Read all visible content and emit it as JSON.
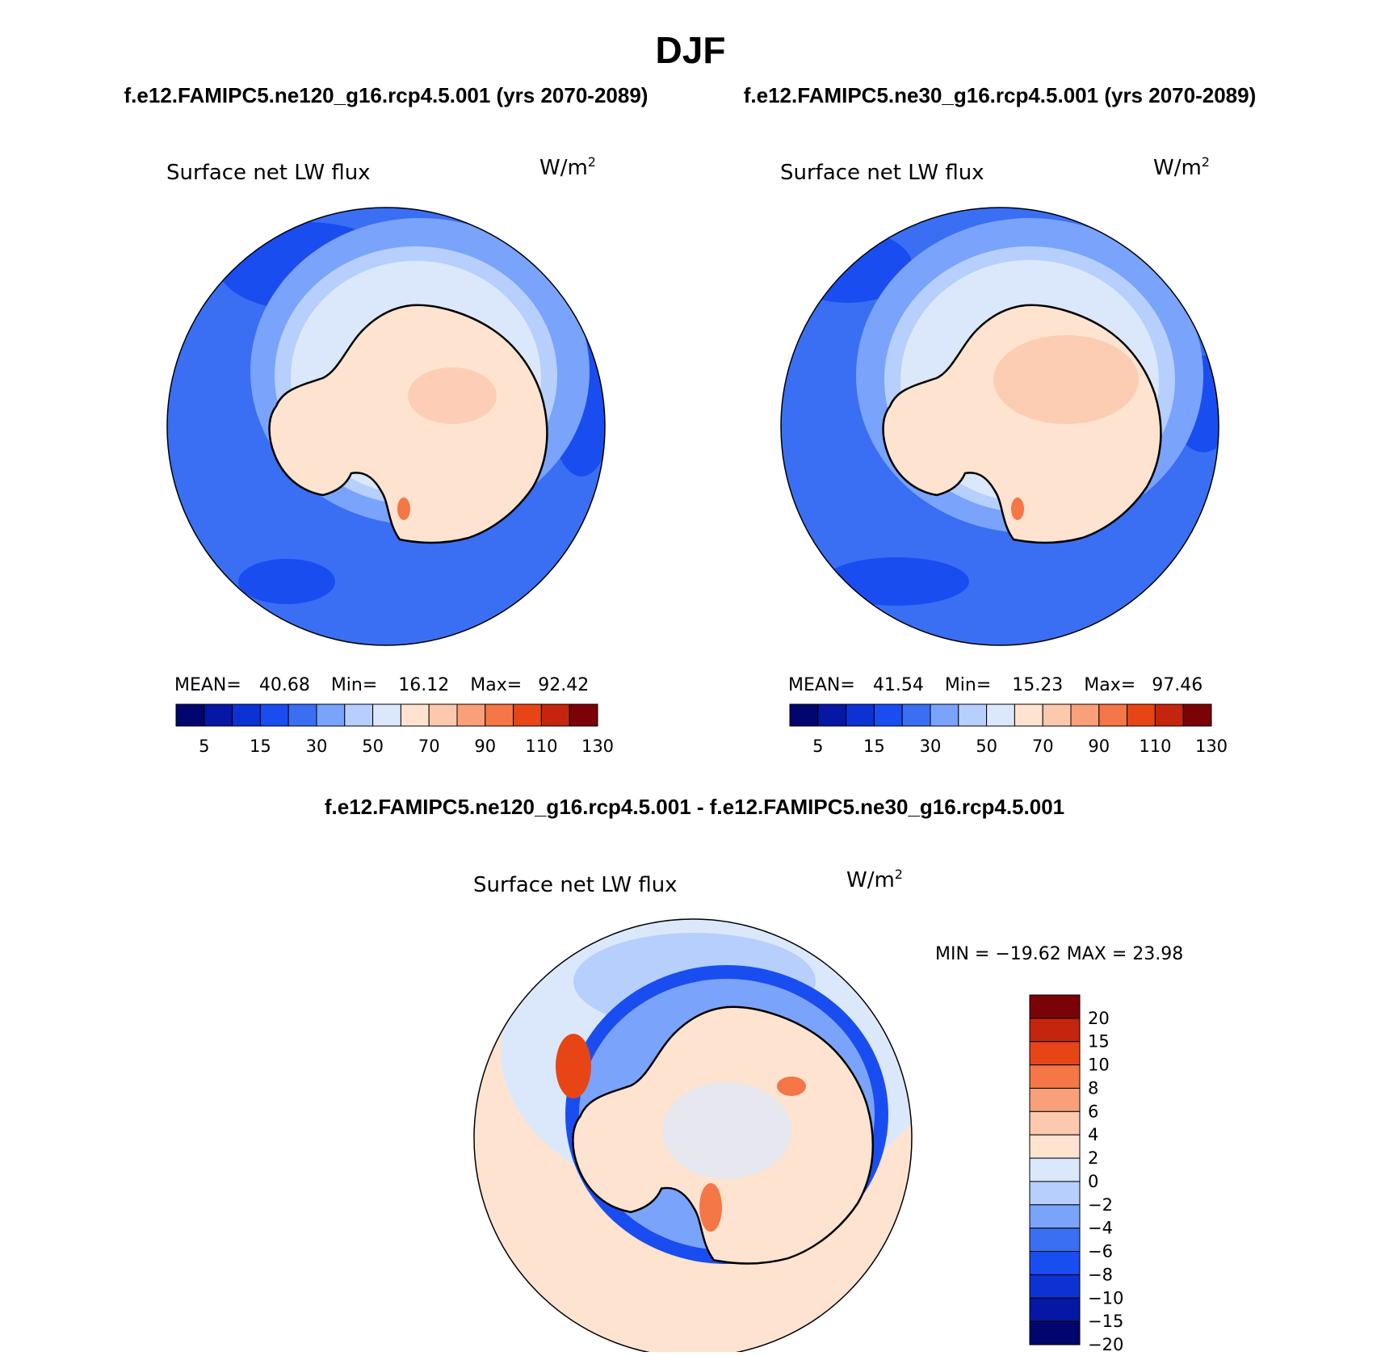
{
  "season": "DJF",
  "colors": {
    "abs": [
      "#00066e",
      "#0517a4",
      "#0d32d4",
      "#1a4df0",
      "#3a6ff4",
      "#7aa3fb",
      "#b6cffc",
      "#dbe8fc",
      "#fde3d0",
      "#fcc8ae",
      "#f9a07a",
      "#f57646",
      "#e84516",
      "#c5250d",
      "#7b0308"
    ],
    "diff": [
      "#00066e",
      "#0517a4",
      "#0d32d4",
      "#1a4df0",
      "#3a6ff4",
      "#7aa3fb",
      "#b6cffc",
      "#dbe8fc",
      "#fde3d0",
      "#fcc8ae",
      "#f9a07a",
      "#f57646",
      "#e84516",
      "#c5250d",
      "#7b0308"
    ],
    "continent": "#fde3d0",
    "coast": "#000000"
  },
  "panels": {
    "left": {
      "case_title": "f.e12.FAMIPC5.ne120_g16.rcp4.5.001 (yrs 2070-2089)",
      "variable": "Surface net LW flux",
      "units_base": "W/m",
      "units_exp": "2",
      "stats": {
        "mean_label": "MEAN=",
        "mean": "40.68",
        "min_label": "Min=",
        "min": "16.12",
        "max_label": "Max=",
        "max": "92.42"
      }
    },
    "right": {
      "case_title": "f.e12.FAMIPC5.ne30_g16.rcp4.5.001 (yrs 2070-2089)",
      "variable": "Surface net LW flux",
      "units_base": "W/m",
      "units_exp": "2",
      "stats": {
        "mean_label": "MEAN=",
        "mean": "41.54",
        "min_label": "Min=",
        "min": "15.23",
        "max_label": "Max=",
        "max": "97.46"
      }
    },
    "diff": {
      "title": "f.e12.FAMIPC5.ne120_g16.rcp4.5.001 - f.e12.FAMIPC5.ne30_g16.rcp4.5.001",
      "variable": "Surface net LW flux",
      "units_base": "W/m",
      "units_exp": "2",
      "minmax": "MIN = −19.62 MAX =   23.98"
    }
  },
  "chart_data": [
    {
      "type": "heatmap",
      "title": "Surface net LW flux",
      "subtitle": "f.e12.FAMIPC5.ne120_g16.rcp4.5.001 (yrs 2070-2089)",
      "units": "W/m2",
      "projection": "south polar stereographic",
      "mean": 40.68,
      "min": 16.12,
      "max": 92.42,
      "colorbar_ticks": [
        "5",
        "15",
        "30",
        "50",
        "70",
        "90",
        "110",
        "130"
      ]
    },
    {
      "type": "heatmap",
      "title": "Surface net LW flux",
      "subtitle": "f.e12.FAMIPC5.ne30_g16.rcp4.5.001 (yrs 2070-2089)",
      "units": "W/m2",
      "projection": "south polar stereographic",
      "mean": 41.54,
      "min": 15.23,
      "max": 97.46,
      "colorbar_ticks": [
        "5",
        "15",
        "30",
        "50",
        "70",
        "90",
        "110",
        "130"
      ]
    },
    {
      "type": "heatmap",
      "title": "Surface net LW flux",
      "subtitle": "f.e12.FAMIPC5.ne120_g16.rcp4.5.001 - f.e12.FAMIPC5.ne30_g16.rcp4.5.001",
      "units": "W/m2",
      "projection": "south polar stereographic",
      "min": -19.62,
      "max": 23.98,
      "colorbar_ticks": [
        "20",
        "15",
        "10",
        "8",
        "6",
        "4",
        "2",
        "0",
        "−2",
        "−4",
        "−6",
        "−8",
        "−10",
        "−15",
        "−20"
      ]
    }
  ]
}
